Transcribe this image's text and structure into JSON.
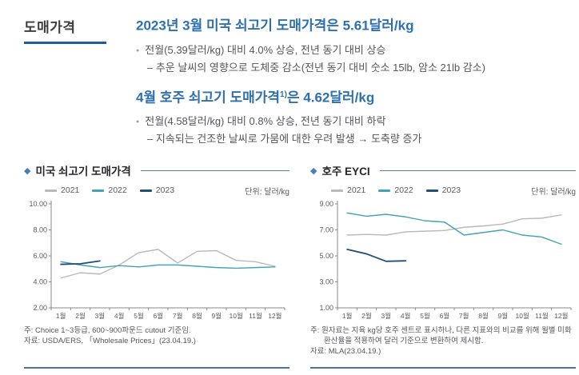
{
  "page": {
    "section_label": "도매가격"
  },
  "summary": {
    "blocks": [
      {
        "headline_pre": "2023년 3월 미국 쇠고기 도매가격은 5.61달러/kg",
        "headline_sup": "",
        "headline_post": "",
        "bullet": "전월(5.39달러/kg) 대비 4.0% 상승, 전년 동기 대비 상승",
        "sub_bullet": "– 추운 날씨의 영향으로 도체중 감소(전년 동기 대비 숫소 15lb, 암소 21lb 감소)"
      },
      {
        "headline_pre": "4월 호주 쇠고기 도매가격",
        "headline_sup": "1)",
        "headline_post": "은 4.62달러/kg",
        "bullet": "전월(4.58달러/kg) 대비 0.8% 상승, 전년 동기 대비 하락",
        "sub_bullet": "– 지속되는 건조한 날씨로 가뭄에 대한 우려 발생 → 도축량 증가"
      }
    ]
  },
  "chart_data": [
    {
      "type": "line",
      "title": "미국 쇠고기 도매가격",
      "unit_label": "단위: 달러/kg",
      "categories": [
        "1월",
        "2월",
        "3월",
        "4월",
        "5월",
        "6월",
        "7월",
        "8월",
        "9월",
        "10월",
        "11월",
        "12월"
      ],
      "series": [
        {
          "name": "2021",
          "color": "#b9b9b9",
          "values": [
            4.3,
            4.7,
            4.6,
            5.3,
            6.25,
            6.5,
            5.45,
            6.35,
            6.4,
            5.65,
            5.55,
            5.2
          ]
        },
        {
          "name": "2022",
          "color": "#44a3b3",
          "values": [
            5.55,
            5.3,
            5.1,
            5.25,
            5.15,
            5.3,
            5.3,
            5.2,
            5.1,
            5.05,
            5.1,
            5.15
          ]
        },
        {
          "name": "2023",
          "color": "#1f4e79",
          "values": [
            5.35,
            5.39,
            5.61
          ]
        }
      ],
      "ylim": [
        2,
        10
      ],
      "yticks": [
        "2.00",
        "4.00",
        "6.00",
        "8.00",
        "10.00"
      ],
      "legend_position": "top-left",
      "grid": false,
      "note": "주: Choice 1~3등급, 600~900파운드 cutout 기준임.",
      "source": "자료: USDA/ERS, 「Wholesale Prices」(23.04.19.)"
    },
    {
      "type": "line",
      "title": "호주 EYCI",
      "unit_label": "단위: 달러/kg",
      "categories": [
        "1월",
        "2월",
        "3월",
        "4월",
        "5월",
        "6월",
        "7월",
        "8월",
        "9월",
        "10월",
        "11월",
        "12월"
      ],
      "series": [
        {
          "name": "2021",
          "color": "#b9b9b9",
          "values": [
            6.6,
            6.65,
            6.6,
            6.85,
            6.9,
            6.95,
            7.2,
            7.3,
            7.45,
            7.85,
            7.9,
            8.15
          ]
        },
        {
          "name": "2022",
          "color": "#44a3b3",
          "values": [
            8.3,
            8.05,
            8.2,
            8.0,
            7.7,
            7.6,
            6.6,
            6.8,
            7.0,
            6.6,
            6.45,
            5.9
          ]
        },
        {
          "name": "2023",
          "color": "#1f4e79",
          "values": [
            5.5,
            5.15,
            4.58,
            4.62
          ]
        }
      ],
      "ylim": [
        1,
        9
      ],
      "yticks": [
        "1.00",
        "3.00",
        "5.00",
        "7.00",
        "9.00"
      ],
      "legend_position": "top-left",
      "grid": false,
      "note": "주: 원자료는 지육 kg당 호주 센트로 표시하나, 다른 지표와의 비교를 위해 월별 미화환산율을 적용하여 달러 기준으로 변환하여 제시함.",
      "source": "자료: MLA(23.04.19.)"
    }
  ],
  "colors": {
    "headline_blue": "#2e6fad",
    "section_underline": "#1d5d9b",
    "series_2021": "#b9b9b9",
    "series_2022": "#44a3b3",
    "series_2023": "#1f4e79",
    "axis": "#8a8a8a",
    "panel_rule": "#46749f"
  }
}
